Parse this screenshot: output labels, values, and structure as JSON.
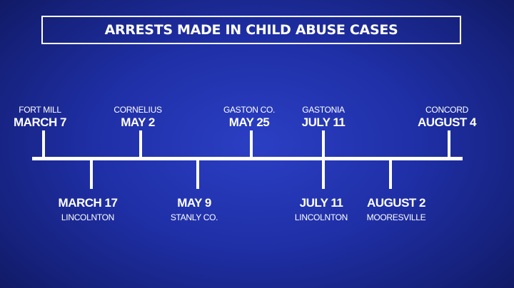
{
  "title": "ARRESTS MADE IN CHILD ABUSE CASES",
  "colors": {
    "background": "#1f2fa6",
    "foreground": "#ffffff"
  },
  "events_above": [
    {
      "place": "FORT MILL",
      "date": "MARCH 7"
    },
    {
      "place": "CORNELIUS",
      "date": "MAY 2"
    },
    {
      "place": "GASTON CO.",
      "date": "MAY 25"
    },
    {
      "place": "GASTONIA",
      "date": "JULY 11"
    },
    {
      "place": "CONCORD",
      "date": "AUGUST 4"
    }
  ],
  "events_below": [
    {
      "date": "MARCH 17",
      "place": "LINCOLNTON"
    },
    {
      "date": "MAY 9",
      "place": "STANLY CO."
    },
    {
      "date": "JULY 11",
      "place": "LINCOLNTON"
    },
    {
      "date": "AUGUST 2",
      "place": "MOORESVILLE"
    }
  ]
}
